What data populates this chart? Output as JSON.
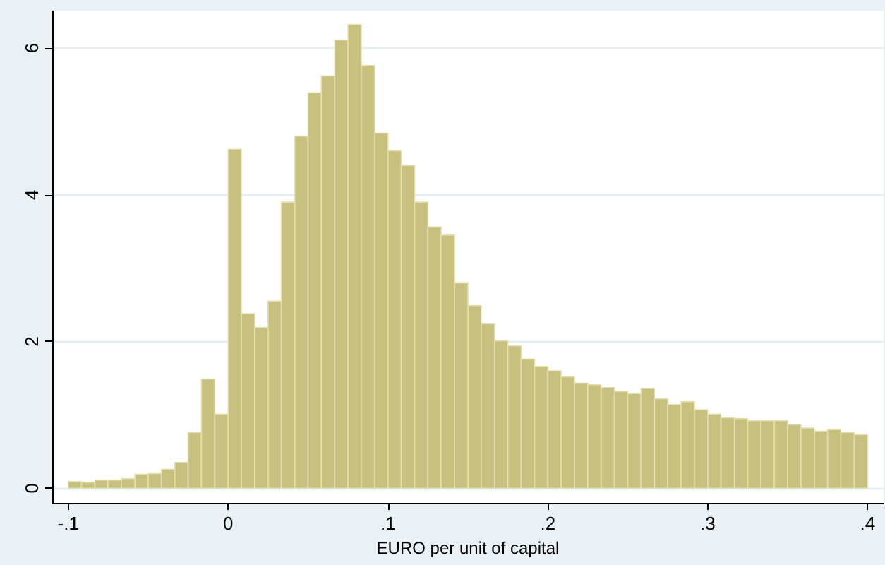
{
  "chart_data": {
    "type": "histogram",
    "xlabel": "EURO per unit of capital",
    "color": "#c8c07e",
    "bins": [
      -0.1,
      -0.0917,
      -0.0833,
      -0.075,
      -0.0667,
      -0.0583,
      -0.05,
      -0.0417,
      -0.0333,
      -0.025,
      -0.0167,
      -0.0083,
      0,
      0.0083,
      0.0167,
      0.025,
      0.0333,
      0.0417,
      0.05,
      0.0583,
      0.0667,
      0.075,
      0.0833,
      0.0917,
      0.1,
      0.1083,
      0.1167,
      0.125,
      0.1333,
      0.1417,
      0.15,
      0.1583,
      0.1667,
      0.175,
      0.1833,
      0.1917,
      0.2,
      0.2083,
      0.2167,
      0.225,
      0.2333,
      0.2417,
      0.25,
      0.2583,
      0.2667,
      0.275,
      0.2833,
      0.2917,
      0.3,
      0.3083,
      0.3167,
      0.325,
      0.3333,
      0.3417,
      0.35,
      0.3583,
      0.3667,
      0.375,
      0.3833,
      0.3917,
      0.4
    ],
    "values": [
      0.09,
      0.08,
      0.11,
      0.11,
      0.13,
      0.19,
      0.2,
      0.26,
      0.35,
      0.76,
      1.49,
      1.01,
      4.62,
      2.38,
      2.19,
      2.55,
      3.9,
      4.8,
      5.39,
      5.62,
      6.11,
      6.32,
      5.76,
      4.84,
      4.6,
      4.4,
      3.9,
      3.56,
      3.45,
      2.8,
      2.49,
      2.24,
      2.01,
      1.94,
      1.76,
      1.66,
      1.6,
      1.52,
      1.43,
      1.41,
      1.37,
      1.32,
      1.29,
      1.36,
      1.22,
      1.14,
      1.18,
      1.07,
      1.01,
      0.96,
      0.95,
      0.92,
      0.92,
      0.92,
      0.87,
      0.82,
      0.78,
      0.8,
      0.76,
      0.73
    ],
    "xlim": [
      -0.11,
      0.41
    ],
    "xticks": [
      {
        "value": -0.1,
        "label": "-.1"
      },
      {
        "value": 0,
        "label": "0"
      },
      {
        "value": 0.1,
        "label": ".1"
      },
      {
        "value": 0.2,
        "label": ".2"
      },
      {
        "value": 0.3,
        "label": ".3"
      },
      {
        "value": 0.4,
        "label": ".4"
      }
    ],
    "ylim": [
      -0.2,
      6.5
    ],
    "yticks": [
      0,
      2,
      4,
      6
    ],
    "grid": "y"
  }
}
